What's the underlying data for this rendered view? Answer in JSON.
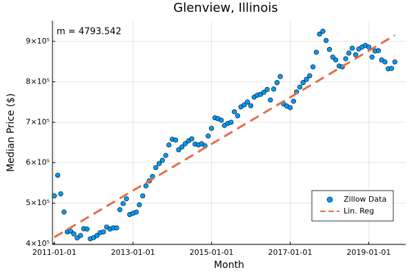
{
  "chart_data": {
    "type": "scatter",
    "title": "Glenview, Illinois",
    "x_label": "Month",
    "y_label": "Median Price ($)",
    "annotation": "m = 4793.542",
    "xlim": [
      "2010-12-14",
      "2019-12-11"
    ],
    "xticks": [
      "2011-01-01",
      "2013-01-01",
      "2015-01-01",
      "2017-01-01",
      "2019-01-01"
    ],
    "ylim": [
      398000,
      951000
    ],
    "yticks": [
      {
        "value": 400000,
        "label": "4×10⁵"
      },
      {
        "value": 500000,
        "label": "5×10⁵"
      },
      {
        "value": 600000,
        "label": "6×10⁵"
      },
      {
        "value": 700000,
        "label": "7×10⁵"
      },
      {
        "value": 800000,
        "label": "8×10⁵"
      },
      {
        "value": 900000,
        "label": "9×10⁵"
      }
    ],
    "grid": true,
    "legend": "bottom-right",
    "series": [
      {
        "name": "Zillow Data",
        "type": "scatter",
        "color": "#009af9",
        "x": [
          "2011-01-01",
          "2011-02-01",
          "2011-03-01",
          "2011-04-01",
          "2011-05-01",
          "2011-06-01",
          "2011-07-01",
          "2011-08-01",
          "2011-09-01",
          "2011-10-01",
          "2011-11-01",
          "2011-12-01",
          "2012-01-01",
          "2012-02-01",
          "2012-03-01",
          "2012-04-01",
          "2012-05-01",
          "2012-06-01",
          "2012-07-01",
          "2012-08-01",
          "2012-09-01",
          "2012-10-01",
          "2012-11-01",
          "2012-12-01",
          "2013-01-01",
          "2013-02-01",
          "2013-03-01",
          "2013-04-01",
          "2013-05-01",
          "2013-06-01",
          "2013-07-01",
          "2013-08-01",
          "2013-09-01",
          "2013-10-01",
          "2013-11-01",
          "2013-12-01",
          "2014-01-01",
          "2014-02-01",
          "2014-03-01",
          "2014-04-01",
          "2014-05-01",
          "2014-06-01",
          "2014-07-01",
          "2014-08-01",
          "2014-09-01",
          "2014-10-01",
          "2014-11-01",
          "2014-12-01",
          "2015-01-01",
          "2015-02-01",
          "2015-03-01",
          "2015-04-01",
          "2015-05-01",
          "2015-06-01",
          "2015-07-01",
          "2015-08-01",
          "2015-09-01",
          "2015-10-01",
          "2015-11-01",
          "2015-12-01",
          "2016-01-01",
          "2016-02-01",
          "2016-03-01",
          "2016-04-01",
          "2016-05-01",
          "2016-06-01",
          "2016-07-01",
          "2016-08-01",
          "2016-09-01",
          "2016-10-01",
          "2016-11-01",
          "2016-12-01",
          "2017-01-01",
          "2017-02-01",
          "2017-03-01",
          "2017-04-01",
          "2017-05-01",
          "2017-06-01",
          "2017-07-01",
          "2017-08-01",
          "2017-09-01",
          "2017-10-01",
          "2017-11-01",
          "2017-12-01",
          "2018-01-01",
          "2018-02-01",
          "2018-03-01",
          "2018-04-01",
          "2018-05-01",
          "2018-06-01",
          "2018-07-01",
          "2018-08-01",
          "2018-09-01",
          "2018-10-01",
          "2018-11-01",
          "2018-12-01",
          "2019-01-01",
          "2019-02-01",
          "2019-03-01",
          "2019-04-01",
          "2019-05-01",
          "2019-06-01",
          "2019-07-01",
          "2019-08-01",
          "2019-09-01"
        ],
        "values": [
          518000,
          569000,
          523000,
          478000,
          429000,
          431000,
          424000,
          414000,
          420000,
          437000,
          436000,
          412000,
          415000,
          420000,
          427000,
          429000,
          441000,
          436000,
          439000,
          439000,
          484000,
          499000,
          511000,
          472000,
          475000,
          478000,
          496000,
          518000,
          543000,
          555000,
          566000,
          588000,
          598000,
          606000,
          618000,
          644000,
          658000,
          656000,
          632000,
          639000,
          647000,
          654000,
          659000,
          646000,
          644000,
          647000,
          642000,
          666000,
          685000,
          711000,
          709000,
          705000,
          692000,
          697000,
          700000,
          726000,
          716000,
          738000,
          743000,
          750000,
          741000,
          762000,
          767000,
          769000,
          774000,
          781000,
          755000,
          782000,
          798000,
          813000,
          745000,
          740000,
          736000,
          752000,
          775000,
          787000,
          798000,
          806000,
          815000,
          837000,
          873000,
          918000,
          925000,
          902000,
          880000,
          861000,
          854000,
          839000,
          837000,
          857000,
          871000,
          883000,
          867000,
          881000,
          886000,
          890000,
          886000,
          861000,
          876000,
          877000,
          854000,
          849000,
          832000,
          833000,
          849000
        ]
      },
      {
        "name": "Lin. Reg",
        "type": "line",
        "color": "#e26f46",
        "x": [
          "2011-01-01",
          "2019-09-01"
        ],
        "values": [
          416000,
          915000
        ]
      }
    ]
  }
}
